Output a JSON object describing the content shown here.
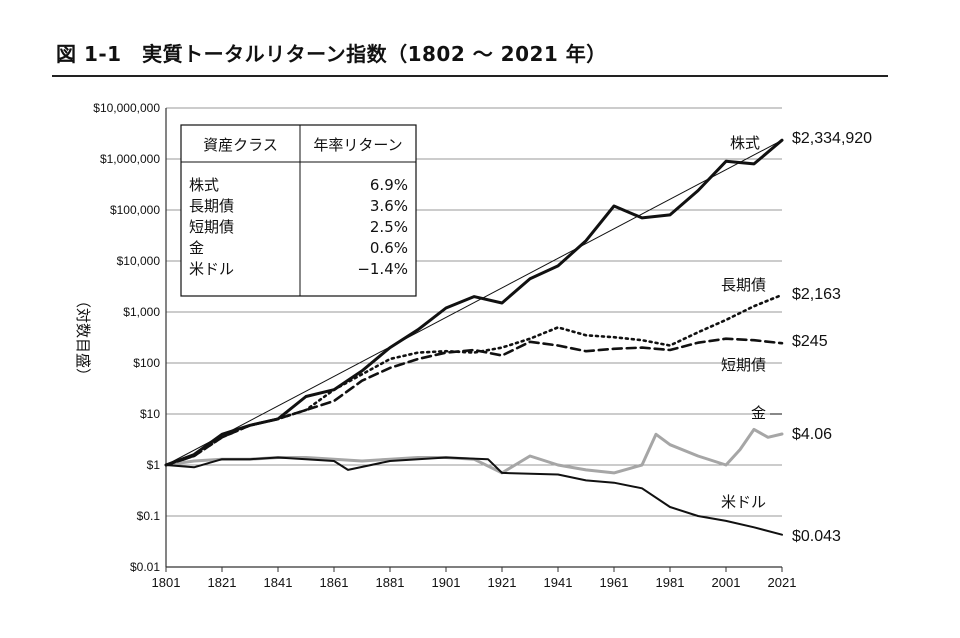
{
  "title": "図 1-1　実質トータルリターン指数（1802 ～ 2021 年）",
  "chart_data": {
    "type": "line",
    "title": "図 1-1　実質トータルリターン指数（1802 ～ 2021 年）",
    "ylabel": "（対数目盛）",
    "yscale": "log",
    "ylim": [
      0.01,
      10000000
    ],
    "xlim": [
      1801,
      2021
    ],
    "grid": "horizontal",
    "x_ticks": [
      "1801",
      "1821",
      "1841",
      "1861",
      "1881",
      "1901",
      "1921",
      "1941",
      "1961",
      "1981",
      "2001",
      "2021"
    ],
    "y_ticks": [
      {
        "value": 10000000,
        "label": "$10,000,000"
      },
      {
        "value": 1000000,
        "label": "$1,000,000"
      },
      {
        "value": 100000,
        "label": "$100,000"
      },
      {
        "value": 10000,
        "label": "$10,000"
      },
      {
        "value": 1000,
        "label": "$1,000"
      },
      {
        "value": 100,
        "label": "$100"
      },
      {
        "value": 10,
        "label": "$10"
      },
      {
        "value": 1,
        "label": "$1"
      },
      {
        "value": 0.1,
        "label": "$0.1"
      },
      {
        "value": 0.01,
        "label": "$0.01"
      }
    ],
    "table": {
      "headers": [
        "資産クラス",
        "年率リターン"
      ],
      "rows": [
        [
          "株式",
          "6.9%"
        ],
        [
          "長期債",
          "3.6%"
        ],
        [
          "短期債",
          "2.5%"
        ],
        [
          "金",
          "0.6%"
        ],
        [
          "米ドル",
          "−1.4%"
        ]
      ]
    },
    "series": [
      {
        "name": "株式",
        "end_label": "$2,334,920",
        "style": "solid-thick",
        "color": "#111111",
        "x": [
          1801,
          1811,
          1821,
          1831,
          1841,
          1851,
          1861,
          1871,
          1881,
          1891,
          1901,
          1911,
          1921,
          1931,
          1941,
          1951,
          1961,
          1971,
          1981,
          1991,
          2001,
          2011,
          2021
        ],
        "y": [
          1,
          1.6,
          4,
          6,
          8,
          22,
          30,
          70,
          200,
          450,
          1200,
          2000,
          1500,
          4500,
          8000,
          25000,
          120000,
          70000,
          80000,
          240000,
          900000,
          800000,
          2334920
        ]
      },
      {
        "name": "長期債",
        "end_label": "$2,163",
        "style": "dotted",
        "color": "#111111",
        "x": [
          1801,
          1811,
          1821,
          1831,
          1841,
          1851,
          1861,
          1871,
          1881,
          1891,
          1901,
          1911,
          1921,
          1931,
          1941,
          1951,
          1961,
          1971,
          1981,
          1991,
          2001,
          2011,
          2021
        ],
        "y": [
          1,
          1.5,
          3.5,
          6,
          8,
          12,
          30,
          60,
          120,
          160,
          170,
          160,
          200,
          300,
          500,
          350,
          320,
          280,
          220,
          400,
          700,
          1300,
          2163
        ]
      },
      {
        "name": "短期債",
        "end_label": "$245",
        "style": "dashed",
        "color": "#111111",
        "x": [
          1801,
          1811,
          1821,
          1831,
          1841,
          1851,
          1861,
          1871,
          1881,
          1891,
          1901,
          1911,
          1921,
          1931,
          1941,
          1951,
          1961,
          1971,
          1981,
          1991,
          2001,
          2011,
          2021
        ],
        "y": [
          1,
          1.5,
          3.5,
          6,
          8,
          12,
          18,
          45,
          80,
          120,
          160,
          180,
          140,
          260,
          220,
          170,
          190,
          200,
          180,
          250,
          300,
          280,
          245
        ]
      },
      {
        "name": "金",
        "end_label": "$4.06",
        "style": "solid-gray",
        "color": "#a6a6a6",
        "x": [
          1801,
          1811,
          1821,
          1831,
          1841,
          1851,
          1861,
          1871,
          1881,
          1891,
          1901,
          1911,
          1921,
          1931,
          1941,
          1951,
          1961,
          1971,
          1976,
          1981,
          1991,
          2001,
          2006,
          2011,
          2016,
          2021
        ],
        "y": [
          1,
          1.2,
          1.3,
          1.3,
          1.4,
          1.4,
          1.3,
          1.2,
          1.3,
          1.4,
          1.4,
          1.3,
          0.7,
          1.5,
          1.0,
          0.8,
          0.7,
          1.0,
          4.0,
          2.5,
          1.5,
          1.0,
          2.0,
          5.0,
          3.5,
          4.06
        ]
      },
      {
        "name": "米ドル",
        "end_label": "$0.043",
        "style": "solid",
        "color": "#111111",
        "x": [
          1801,
          1811,
          1821,
          1831,
          1841,
          1851,
          1861,
          1866,
          1881,
          1901,
          1916,
          1921,
          1941,
          1951,
          1961,
          1971,
          1981,
          1991,
          2001,
          2011,
          2021
        ],
        "y": [
          1,
          0.9,
          1.3,
          1.3,
          1.4,
          1.3,
          1.2,
          0.8,
          1.2,
          1.4,
          1.3,
          0.7,
          0.65,
          0.5,
          0.45,
          0.35,
          0.15,
          0.1,
          0.08,
          0.06,
          0.043
        ]
      }
    ]
  }
}
